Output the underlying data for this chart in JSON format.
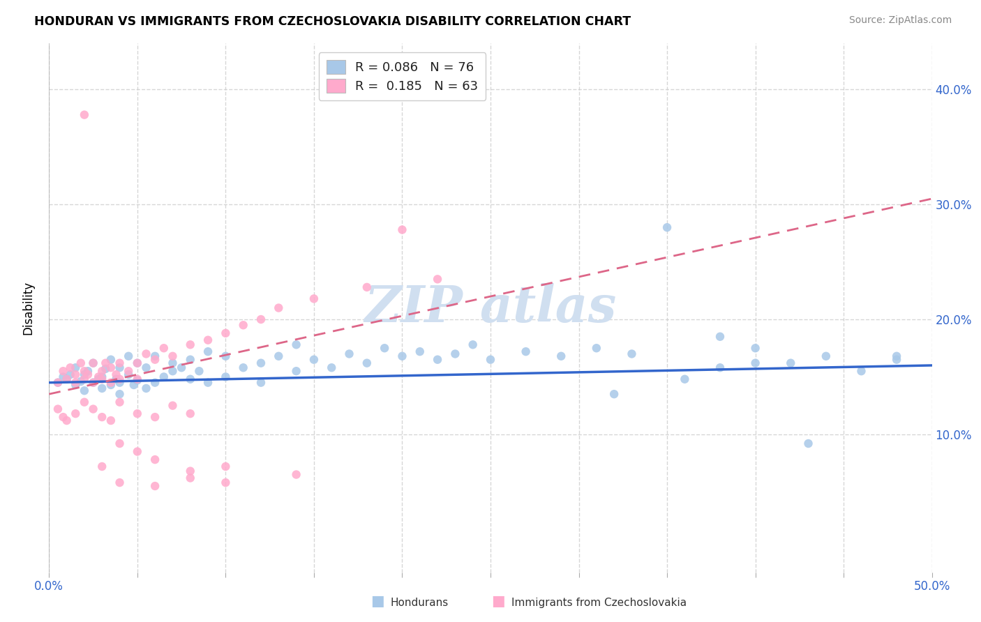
{
  "title": "HONDURAN VS IMMIGRANTS FROM CZECHOSLOVAKIA DISABILITY CORRELATION CHART",
  "source": "Source: ZipAtlas.com",
  "ylabel": "Disability",
  "xlim": [
    0.0,
    0.5
  ],
  "ylim": [
    -0.02,
    0.44
  ],
  "color_blue": "#a8c8e8",
  "color_pink": "#ffaacc",
  "color_blue_line": "#3366cc",
  "color_pink_line": "#dd6688",
  "background_color": "#ffffff",
  "grid_color": "#cccccc",
  "watermark_color": "#d0dff0",
  "hon_x": [
    0.005,
    0.008,
    0.01,
    0.012,
    0.015,
    0.015,
    0.018,
    0.02,
    0.02,
    0.022,
    0.025,
    0.025,
    0.028,
    0.03,
    0.03,
    0.032,
    0.035,
    0.035,
    0.038,
    0.04,
    0.04,
    0.04,
    0.045,
    0.045,
    0.048,
    0.05,
    0.05,
    0.055,
    0.055,
    0.06,
    0.06,
    0.065,
    0.07,
    0.07,
    0.075,
    0.08,
    0.08,
    0.085,
    0.09,
    0.09,
    0.1,
    0.1,
    0.11,
    0.12,
    0.12,
    0.13,
    0.14,
    0.14,
    0.15,
    0.16,
    0.17,
    0.18,
    0.19,
    0.2,
    0.21,
    0.22,
    0.23,
    0.24,
    0.25,
    0.27,
    0.29,
    0.31,
    0.33,
    0.35,
    0.38,
    0.4,
    0.42,
    0.44,
    0.46,
    0.48,
    0.38,
    0.43,
    0.48,
    0.32,
    0.36,
    0.4
  ],
  "hon_y": [
    0.145,
    0.15,
    0.148,
    0.152,
    0.143,
    0.158,
    0.146,
    0.152,
    0.138,
    0.155,
    0.145,
    0.162,
    0.148,
    0.15,
    0.14,
    0.157,
    0.143,
    0.165,
    0.148,
    0.145,
    0.158,
    0.135,
    0.152,
    0.168,
    0.143,
    0.147,
    0.162,
    0.14,
    0.158,
    0.145,
    0.168,
    0.15,
    0.155,
    0.162,
    0.158,
    0.148,
    0.165,
    0.155,
    0.145,
    0.172,
    0.15,
    0.168,
    0.158,
    0.162,
    0.145,
    0.168,
    0.155,
    0.178,
    0.165,
    0.158,
    0.17,
    0.162,
    0.175,
    0.168,
    0.172,
    0.165,
    0.17,
    0.178,
    0.165,
    0.172,
    0.168,
    0.175,
    0.17,
    0.28,
    0.158,
    0.175,
    0.162,
    0.168,
    0.155,
    0.165,
    0.185,
    0.092,
    0.168,
    0.135,
    0.148,
    0.162
  ],
  "cze_x": [
    0.005,
    0.008,
    0.01,
    0.012,
    0.015,
    0.015,
    0.018,
    0.02,
    0.02,
    0.022,
    0.025,
    0.025,
    0.028,
    0.03,
    0.03,
    0.032,
    0.035,
    0.035,
    0.038,
    0.04,
    0.04,
    0.045,
    0.05,
    0.05,
    0.055,
    0.06,
    0.065,
    0.07,
    0.08,
    0.09,
    0.1,
    0.11,
    0.12,
    0.13,
    0.15,
    0.18,
    0.22,
    0.005,
    0.008,
    0.01,
    0.015,
    0.02,
    0.025,
    0.03,
    0.035,
    0.04,
    0.05,
    0.06,
    0.07,
    0.08,
    0.04,
    0.05,
    0.06,
    0.08,
    0.1,
    0.14,
    0.02,
    0.03,
    0.04,
    0.06,
    0.08,
    0.1,
    0.2
  ],
  "cze_y": [
    0.145,
    0.155,
    0.148,
    0.158,
    0.152,
    0.145,
    0.162,
    0.148,
    0.155,
    0.152,
    0.145,
    0.162,
    0.15,
    0.155,
    0.148,
    0.162,
    0.145,
    0.158,
    0.152,
    0.148,
    0.162,
    0.155,
    0.148,
    0.162,
    0.17,
    0.165,
    0.175,
    0.168,
    0.178,
    0.182,
    0.188,
    0.195,
    0.2,
    0.21,
    0.218,
    0.228,
    0.235,
    0.122,
    0.115,
    0.112,
    0.118,
    0.128,
    0.122,
    0.115,
    0.112,
    0.128,
    0.118,
    0.115,
    0.125,
    0.118,
    0.092,
    0.085,
    0.078,
    0.068,
    0.072,
    0.065,
    0.378,
    0.072,
    0.058,
    0.055,
    0.062,
    0.058,
    0.278
  ]
}
